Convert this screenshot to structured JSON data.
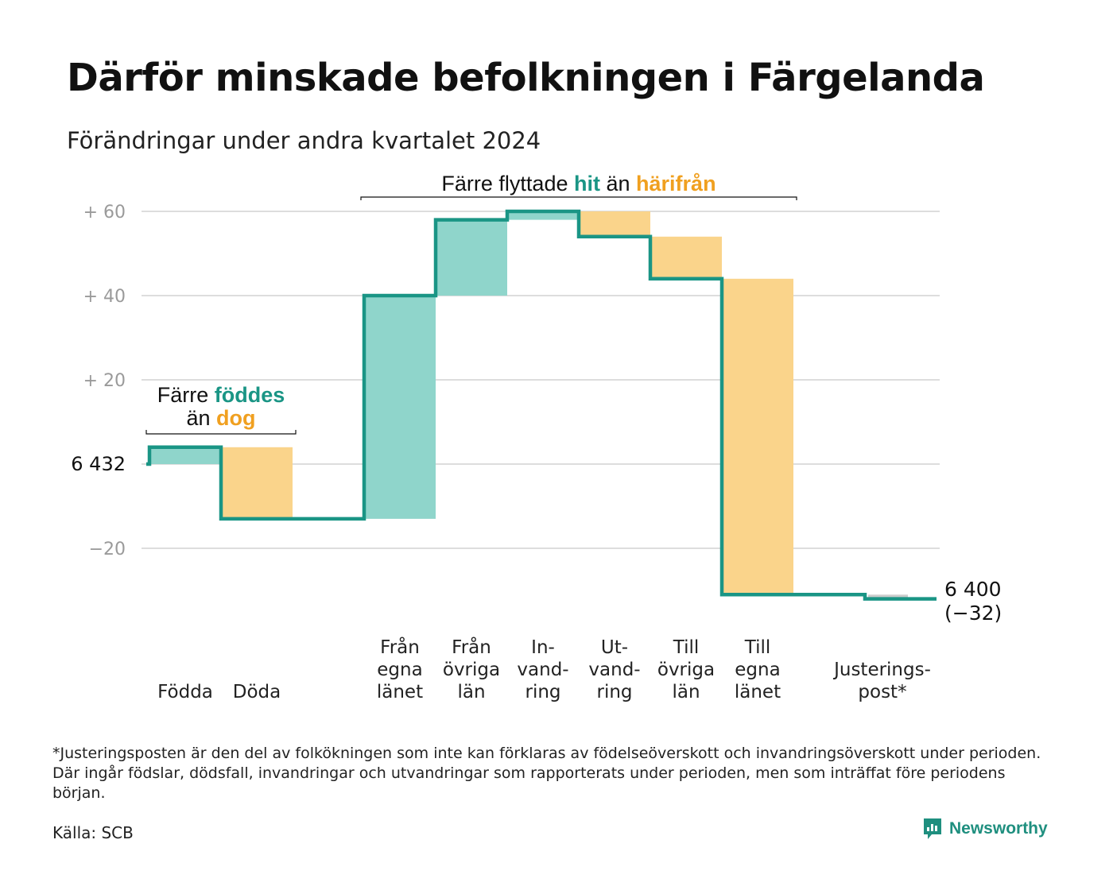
{
  "title": "Därför minskade befolkningen i Färgelanda",
  "subtitle": "Förändringar under andra kvartalet 2024",
  "footnote": "*Justeringsposten är den del av folkökningen som inte kan förklaras av födelseöverskott och invandringsöverskott under perioden. Där ingår födslar, dödsfall, invandringar och utvandringar som rapporterats under perioden, men som inträffat före periodens början.",
  "source": "Källa: SCB",
  "brand": "Newsworthy",
  "colors": {
    "increase": "#8fd5cb",
    "decrease": "#fad48b",
    "line": "#1a9585",
    "adjust": "#cccccc",
    "teal_text": "#1a9585",
    "orange_text": "#f0a020"
  },
  "chart_data": {
    "type": "waterfall",
    "start_value": 6432,
    "start_label": "6  432",
    "end_value": 6400,
    "end_label": "6 400",
    "end_change_label": "(−32)",
    "y_range": [
      -33,
      62
    ],
    "y_ticks": [
      {
        "value": 60,
        "label": "+  60"
      },
      {
        "value": 40,
        "label": "+  40"
      },
      {
        "value": 20,
        "label": "+  20"
      },
      {
        "value": 0,
        "label": ""
      },
      {
        "value": -20,
        "label": "−20"
      }
    ],
    "grid": true,
    "steps": [
      {
        "label": [
          "Födda"
        ],
        "change": 4,
        "kind": "increase"
      },
      {
        "label": [
          "Döda"
        ],
        "change": -17,
        "kind": "decrease"
      },
      {
        "label": [],
        "change": 0,
        "kind": "gap"
      },
      {
        "label": [
          "Från",
          "egna",
          "länet"
        ],
        "change": 53,
        "kind": "increase"
      },
      {
        "label": [
          "Från",
          "övriga",
          "län"
        ],
        "change": 18,
        "kind": "increase"
      },
      {
        "label": [
          "In-",
          "vand-",
          "ring"
        ],
        "change": 2,
        "kind": "increase"
      },
      {
        "label": [
          "Ut-",
          "vand-",
          "ring"
        ],
        "change": -6,
        "kind": "decrease"
      },
      {
        "label": [
          "Till",
          "övriga",
          "län"
        ],
        "change": -10,
        "kind": "decrease"
      },
      {
        "label": [
          "Till",
          "egna",
          "länet"
        ],
        "change": -75,
        "kind": "decrease"
      },
      {
        "label": [],
        "change": 0,
        "kind": "gap"
      },
      {
        "label": [
          "Justerings-",
          "post*"
        ],
        "change": -1,
        "kind": "adjustment"
      }
    ],
    "annotations": [
      {
        "id": "births",
        "parts": [
          [
            "Färre ",
            "plain"
          ],
          [
            "föddes",
            "teal"
          ]
        ],
        "parts2": [
          [
            "än ",
            "plain"
          ],
          [
            "dog",
            "orange"
          ]
        ],
        "from_step": 0,
        "to_step": 1
      },
      {
        "id": "moves",
        "parts": [
          [
            "Färre flyttade ",
            "plain"
          ],
          [
            "hit",
            "teal"
          ],
          [
            " än ",
            "plain"
          ],
          [
            "härifrån",
            "orange"
          ]
        ],
        "from_step": 3,
        "to_step": 8
      }
    ]
  }
}
